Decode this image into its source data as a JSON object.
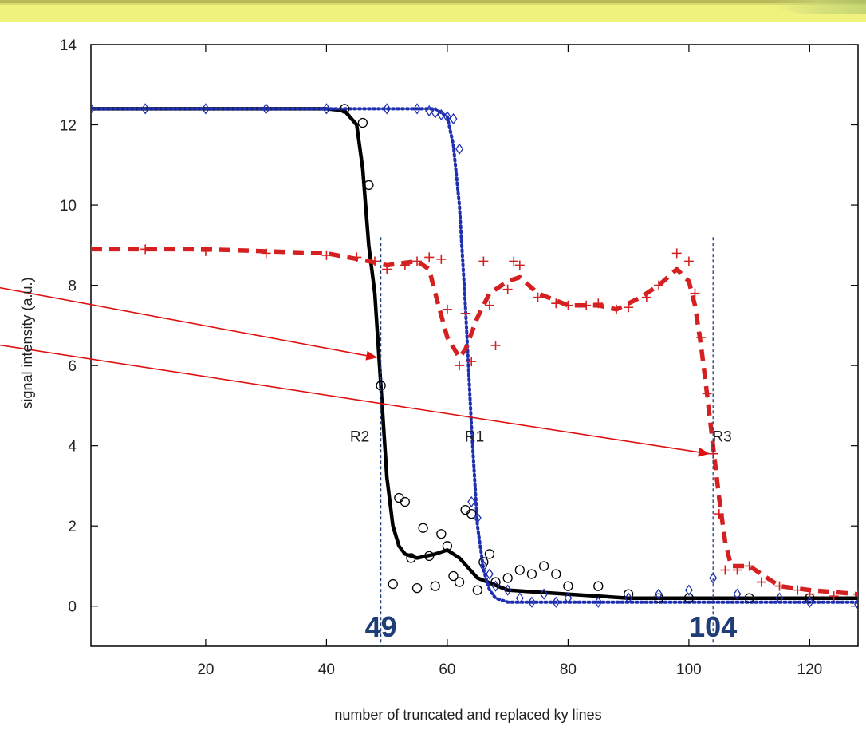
{
  "chart_data": {
    "type": "line",
    "title": "",
    "xlabel": "number of truncated and replaced ky lines",
    "ylabel": "signal intensity (a.u.)",
    "xlim": [
      1,
      128
    ],
    "ylim": [
      -1,
      14
    ],
    "x_ticks": [
      20,
      40,
      60,
      80,
      100,
      120
    ],
    "y_ticks": [
      0,
      2,
      4,
      6,
      8,
      10,
      12,
      14
    ],
    "grid": false,
    "legend": "none",
    "series": [
      {
        "style": "black solid line",
        "color": "#000000",
        "x": [
          1,
          10,
          20,
          30,
          40,
          43,
          45,
          46,
          47,
          48,
          49,
          50,
          51,
          52,
          53,
          55,
          58,
          60,
          62,
          65,
          70,
          80,
          90,
          100,
          110,
          120,
          128
        ],
        "values": [
          12.4,
          12.4,
          12.4,
          12.4,
          12.4,
          12.35,
          12.0,
          10.9,
          9.0,
          7.8,
          5.5,
          3.2,
          2.0,
          1.5,
          1.3,
          1.2,
          1.3,
          1.4,
          1.2,
          0.7,
          0.4,
          0.3,
          0.2,
          0.2,
          0.2,
          0.2,
          0.2
        ]
      },
      {
        "style": "blue dotted line",
        "color": "#1e2fb0",
        "x": [
          1,
          20,
          40,
          55,
          58,
          60,
          61,
          62,
          63,
          64,
          65,
          66,
          67,
          68,
          70,
          75,
          80,
          100,
          128
        ],
        "values": [
          12.4,
          12.4,
          12.4,
          12.4,
          12.4,
          12.2,
          11.5,
          10.0,
          7.5,
          4.5,
          2.0,
          0.9,
          0.4,
          0.2,
          0.1,
          0.1,
          0.1,
          0.1,
          0.1
        ]
      },
      {
        "style": "red dashed line",
        "color": "#d42020",
        "x": [
          1,
          20,
          40,
          47,
          50,
          55,
          57,
          58,
          60,
          62,
          63,
          65,
          67,
          70,
          72,
          75,
          80,
          85,
          88,
          92,
          95,
          98,
          100,
          101,
          102,
          103,
          104,
          105,
          106,
          107,
          110,
          115,
          120,
          128
        ],
        "values": [
          8.9,
          8.9,
          8.8,
          8.6,
          8.5,
          8.6,
          8.4,
          7.8,
          6.7,
          6.2,
          6.4,
          7.2,
          7.8,
          8.1,
          8.2,
          7.8,
          7.5,
          7.5,
          7.4,
          7.7,
          8.0,
          8.4,
          8.1,
          7.5,
          6.5,
          5.3,
          4.0,
          2.7,
          1.6,
          1.0,
          1.0,
          0.5,
          0.4,
          0.3
        ]
      },
      {
        "style": "black open circles",
        "color": "#000000",
        "x": [
          43,
          46,
          47,
          49,
          51,
          52,
          53,
          54,
          55,
          56,
          57,
          58,
          59,
          60,
          61,
          62,
          63,
          64,
          65,
          66,
          67,
          68,
          70,
          72,
          74,
          76,
          78,
          80,
          85,
          90,
          95,
          100,
          110,
          120
        ],
        "values": [
          12.4,
          12.05,
          10.5,
          5.5,
          0.55,
          2.7,
          2.6,
          1.2,
          0.45,
          1.95,
          1.25,
          0.5,
          1.8,
          1.5,
          0.75,
          0.6,
          2.4,
          2.3,
          0.4,
          1.1,
          1.3,
          0.6,
          0.7,
          0.9,
          0.8,
          1.0,
          0.8,
          0.5,
          0.5,
          0.3,
          0.2,
          0.2,
          0.2,
          0.2
        ]
      },
      {
        "style": "blue open diamonds",
        "color": "#1e2fb0",
        "x": [
          1,
          10,
          20,
          30,
          40,
          50,
          55,
          57,
          58,
          59,
          60,
          61,
          62,
          64,
          65,
          66,
          67,
          68,
          70,
          72,
          74,
          76,
          78,
          80,
          85,
          90,
          95,
          100,
          104,
          108,
          115,
          120,
          128
        ],
        "values": [
          12.4,
          12.4,
          12.4,
          12.4,
          12.4,
          12.4,
          12.4,
          12.35,
          12.3,
          12.25,
          12.2,
          12.15,
          11.4,
          2.6,
          2.2,
          1.0,
          0.8,
          0.5,
          0.4,
          0.2,
          0.1,
          0.3,
          0.1,
          0.2,
          0.1,
          0.2,
          0.3,
          0.4,
          0.7,
          0.3,
          0.2,
          0.1,
          0.05
        ]
      },
      {
        "style": "red plus markers",
        "color": "#d42020",
        "x": [
          1,
          10,
          20,
          30,
          40,
          45,
          48,
          50,
          53,
          55,
          57,
          59,
          60,
          62,
          63,
          64,
          66,
          67,
          68,
          70,
          71,
          72,
          75,
          78,
          80,
          83,
          85,
          88,
          90,
          93,
          95,
          98,
          100,
          101,
          102,
          103,
          104,
          105,
          106,
          108,
          110,
          112,
          115,
          118,
          120,
          124,
          128
        ],
        "values": [
          8.9,
          8.9,
          8.85,
          8.8,
          8.75,
          8.7,
          8.6,
          8.4,
          8.5,
          8.6,
          8.7,
          8.65,
          7.4,
          6.0,
          7.3,
          6.1,
          8.6,
          7.5,
          6.5,
          7.9,
          8.6,
          8.5,
          7.7,
          7.55,
          7.5,
          7.5,
          7.55,
          7.4,
          7.45,
          7.7,
          8.0,
          8.8,
          8.6,
          7.8,
          6.7,
          5.3,
          3.8,
          2.3,
          0.9,
          0.9,
          1.0,
          0.6,
          0.5,
          0.4,
          0.3,
          0.25,
          0.3
        ]
      }
    ],
    "annotations": {
      "region_labels": [
        {
          "text": "R2",
          "x": 45.5,
          "y": 4.1
        },
        {
          "text": "R1",
          "x": 64.5,
          "y": 4.1
        },
        {
          "text": "R3",
          "x": 105.5,
          "y": 4.1
        }
      ],
      "vertical_markers": [
        {
          "x": 49,
          "label": "49"
        },
        {
          "x": 104,
          "label": "104"
        }
      ],
      "arrows": [
        {
          "color": "#e01010",
          "from": [
            -18,
            8.05
          ],
          "to": [
            48.3,
            6.2
          ]
        },
        {
          "color": "#e01010",
          "from": [
            -18,
            6.6
          ],
          "to": [
            103.3,
            3.8
          ]
        }
      ]
    }
  }
}
